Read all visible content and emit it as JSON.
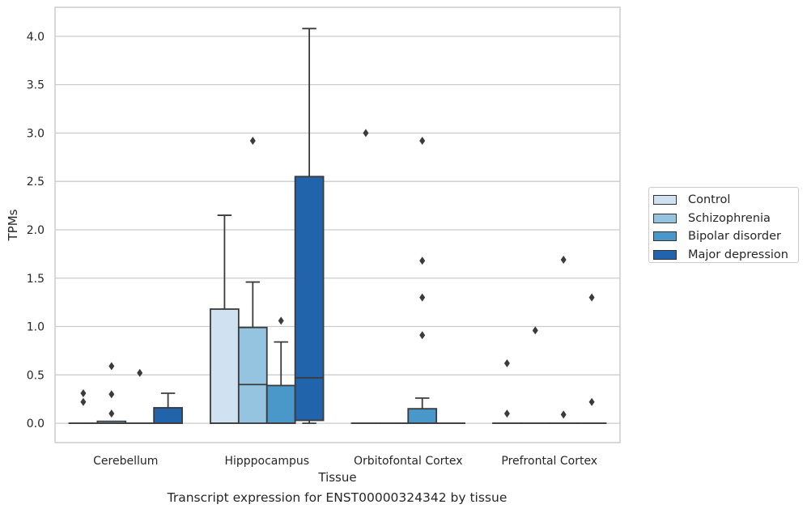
{
  "chart_data": {
    "type": "box",
    "title": "",
    "xlabel": "Tissue",
    "ylabel": "TPMs",
    "caption": "Transcript expression for ENST00000324342 by tissue",
    "ylim": [
      -0.2,
      4.3
    ],
    "yticks": [
      "0.0",
      "0.5",
      "1.0",
      "1.5",
      "2.0",
      "2.5",
      "3.0",
      "3.5",
      "4.0"
    ],
    "grid": true,
    "legend_position": "right",
    "categories": [
      "Cerebellum",
      "Hipppocampus",
      "Orbitofontal Cortex",
      "Prefrontal Cortex"
    ],
    "series": [
      {
        "name": "Control",
        "color": "#d0e1f2",
        "boxes": [
          {
            "q1": 0,
            "median": 0,
            "q3": 0,
            "whisker_low": 0,
            "whisker_high": 0,
            "outliers": [
              0.31,
              0.22
            ]
          },
          {
            "q1": 0,
            "median": 0,
            "q3": 1.18,
            "whisker_low": 0,
            "whisker_high": 2.15,
            "outliers": []
          },
          {
            "q1": 0,
            "median": 0,
            "q3": 0,
            "whisker_low": 0,
            "whisker_high": 0,
            "outliers": [
              3.0
            ]
          },
          {
            "q1": 0,
            "median": 0,
            "q3": 0,
            "whisker_low": 0,
            "whisker_high": 0,
            "outliers": [
              0.62,
              0.1
            ]
          }
        ]
      },
      {
        "name": "Schizophrenia",
        "color": "#94c4df",
        "boxes": [
          {
            "q1": 0,
            "median": 0,
            "q3": 0.02,
            "whisker_low": 0,
            "whisker_high": 0.02,
            "outliers": [
              0.59,
              0.3,
              0.1
            ]
          },
          {
            "q1": 0,
            "median": 0.4,
            "q3": 0.99,
            "whisker_low": 0,
            "whisker_high": 1.46,
            "outliers": [
              2.92
            ]
          },
          {
            "q1": 0,
            "median": 0,
            "q3": 0,
            "whisker_low": 0,
            "whisker_high": 0,
            "outliers": []
          },
          {
            "q1": 0,
            "median": 0,
            "q3": 0,
            "whisker_low": 0,
            "whisker_high": 0,
            "outliers": [
              0.96
            ]
          }
        ]
      },
      {
        "name": "Bipolar disorder",
        "color": "#4a98c9",
        "boxes": [
          {
            "q1": 0,
            "median": 0,
            "q3": 0,
            "whisker_low": 0,
            "whisker_high": 0,
            "outliers": [
              0.52
            ]
          },
          {
            "q1": 0,
            "median": 0,
            "q3": 0.39,
            "whisker_low": 0,
            "whisker_high": 0.84,
            "outliers": [
              1.06
            ]
          },
          {
            "q1": 0,
            "median": 0,
            "q3": 0.15,
            "whisker_low": 0,
            "whisker_high": 0.26,
            "outliers": [
              2.92,
              1.68,
              1.3,
              0.91
            ]
          },
          {
            "q1": 0,
            "median": 0,
            "q3": 0,
            "whisker_low": 0,
            "whisker_high": 0,
            "outliers": [
              1.69,
              0.09
            ]
          }
        ]
      },
      {
        "name": "Major depression",
        "color": "#2164ab",
        "boxes": [
          {
            "q1": 0,
            "median": 0,
            "q3": 0.16,
            "whisker_low": 0,
            "whisker_high": 0.31,
            "outliers": []
          },
          {
            "q1": 0.03,
            "median": 0.47,
            "q3": 2.55,
            "whisker_low": 0,
            "whisker_high": 4.08,
            "outliers": []
          },
          {
            "q1": 0,
            "median": 0,
            "q3": 0,
            "whisker_low": 0,
            "whisker_high": 0,
            "outliers": []
          },
          {
            "q1": 0,
            "median": 0,
            "q3": 0,
            "whisker_low": 0,
            "whisker_high": 0,
            "outliers": [
              1.3,
              0.22
            ]
          }
        ]
      }
    ]
  }
}
